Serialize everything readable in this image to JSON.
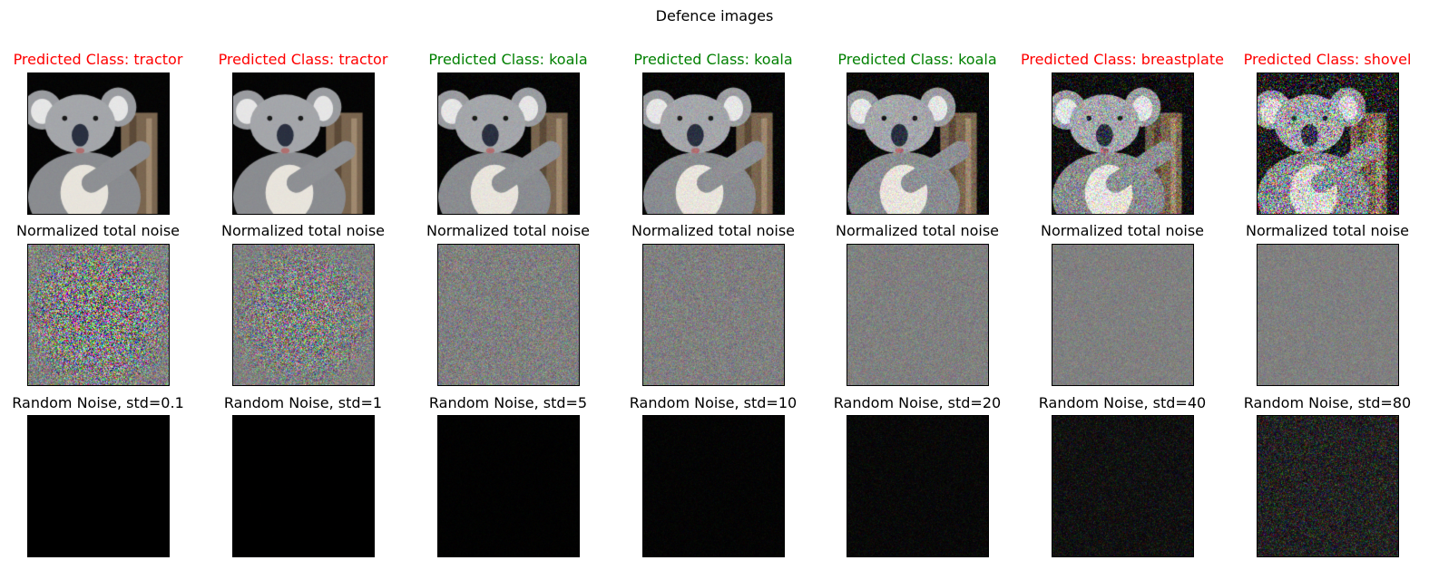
{
  "title": "Defence images",
  "colors": {
    "wrong": "#ff0000",
    "correct": "#008000"
  },
  "row_titles": {
    "noise": "Normalized total noise"
  },
  "columns": [
    {
      "prediction": "Predicted Class: tractor",
      "correct": false,
      "noise_label": "Random Noise, std=0.1",
      "std": 0.1
    },
    {
      "prediction": "Predicted Class: tractor",
      "correct": false,
      "noise_label": "Random Noise, std=1",
      "std": 1
    },
    {
      "prediction": "Predicted Class: koala",
      "correct": true,
      "noise_label": "Random Noise, std=5",
      "std": 5
    },
    {
      "prediction": "Predicted Class: koala",
      "correct": true,
      "noise_label": "Random Noise, std=10",
      "std": 10
    },
    {
      "prediction": "Predicted Class: koala",
      "correct": true,
      "noise_label": "Random Noise, std=20",
      "std": 20
    },
    {
      "prediction": "Predicted Class: breastplate",
      "correct": false,
      "noise_label": "Random Noise, std=40",
      "std": 40
    },
    {
      "prediction": "Predicted Class: shovel",
      "correct": false,
      "noise_label": "Random Noise, std=80",
      "std": 80
    }
  ]
}
